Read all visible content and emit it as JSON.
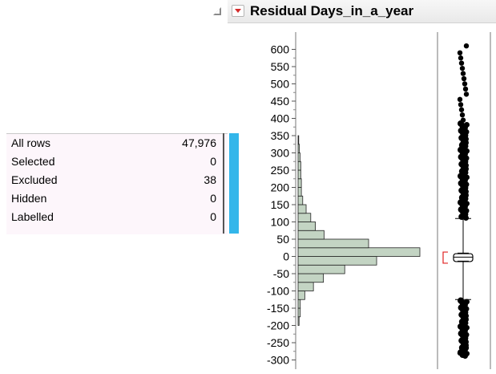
{
  "report": {
    "title": "Residual Days_in_a_year"
  },
  "row_states": {
    "rows": [
      {
        "label": "All rows",
        "value": "47,976"
      },
      {
        "label": "Selected",
        "value": "0"
      },
      {
        "label": "Excluded",
        "value": "38"
      },
      {
        "label": "Hidden",
        "value": "0"
      },
      {
        "label": "Labelled",
        "value": "0"
      }
    ],
    "bar_color": "#33b6ea"
  },
  "chart_data": {
    "type": "bar",
    "orientation": "horizontal",
    "title": "Residual Days_in_a_year",
    "xlabel": "",
    "ylabel": "",
    "ylim": [
      -310,
      630
    ],
    "y_ticks": [
      "600",
      "550",
      "500",
      "450",
      "400",
      "350",
      "300",
      "250",
      "200",
      "150",
      "100",
      "50",
      "0",
      "-50",
      "-100",
      "-150",
      "-200",
      "-250",
      "-300"
    ],
    "bin_width": 25,
    "bins": [
      {
        "from": -200,
        "to": -175,
        "count": 0.8
      },
      {
        "from": -175,
        "to": -150,
        "count": 1.8
      },
      {
        "from": -150,
        "to": -125,
        "count": 1.8
      },
      {
        "from": -125,
        "to": -100,
        "count": 5.5
      },
      {
        "from": -100,
        "to": -75,
        "count": 12.6
      },
      {
        "from": -75,
        "to": -50,
        "count": 20.8
      },
      {
        "from": -50,
        "to": -25,
        "count": 38.3
      },
      {
        "from": -25,
        "to": 0,
        "count": 64.5
      },
      {
        "from": 0,
        "to": 25,
        "count": 100
      },
      {
        "from": 25,
        "to": 50,
        "count": 57.9
      },
      {
        "from": 50,
        "to": 75,
        "count": 21.3
      },
      {
        "from": 75,
        "to": 100,
        "count": 14.2
      },
      {
        "from": 100,
        "to": 125,
        "count": 10.4
      },
      {
        "from": 125,
        "to": 150,
        "count": 6.6
      },
      {
        "from": 150,
        "to": 175,
        "count": 3.8
      },
      {
        "from": 175,
        "to": 200,
        "count": 2.7
      },
      {
        "from": 200,
        "to": 225,
        "count": 2.7
      },
      {
        "from": 225,
        "to": 250,
        "count": 2.2
      },
      {
        "from": 250,
        "to": 275,
        "count": 2.2
      },
      {
        "from": 275,
        "to": 300,
        "count": 1.6
      },
      {
        "from": 300,
        "to": 325,
        "count": 1.1
      },
      {
        "from": 325,
        "to": 350,
        "count": 0.5
      }
    ],
    "count_units": "relative (tallest bar = 100)",
    "bar_color": "#c3d4c3",
    "box_plot": {
      "q1": -15,
      "median": -2,
      "q3": 8,
      "mean": 0,
      "whisker_low": -125,
      "whisker_high": 110,
      "outlier_ranges": [
        [
          -285,
          -128
        ],
        [
          115,
          385
        ]
      ],
      "outlier_points": [
        -280,
        -265,
        -250,
        -230,
        -205,
        395,
        410,
        425,
        440,
        455,
        470,
        485,
        500,
        515,
        530,
        545,
        560,
        575,
        590,
        610
      ],
      "bracket_color": "#e02020"
    }
  }
}
